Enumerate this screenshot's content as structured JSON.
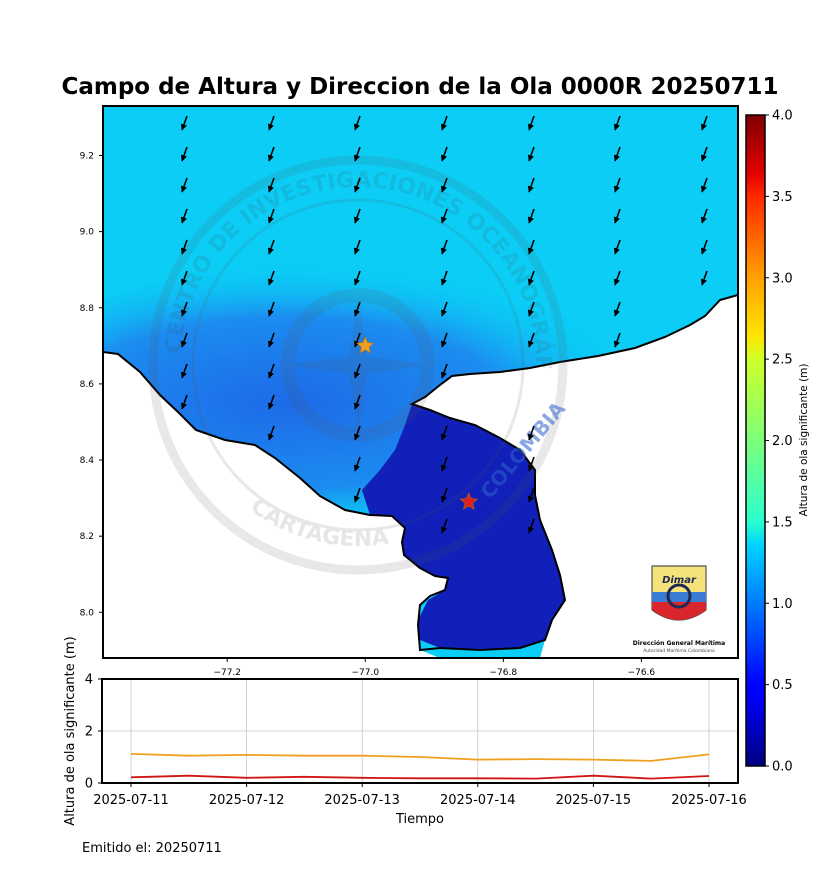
{
  "title": "Campo de Altura y Direccion de la Ola 0000R 20250711",
  "issued": "Emitido el: 20250711",
  "logo": {
    "name": "Dimar",
    "line1": "Dirección General Marítima",
    "line2": "Autoridad Marítima Colombiana"
  },
  "watermark": {
    "text_top": "CENTRO DE INVESTIGACIONES OCEANOGRÁFICAS E HIDROGRÁFICAS",
    "text_bottom": "CARTAGENA",
    "text_country": "COLOMBIA"
  },
  "colors": {
    "sea_open": "#0bcdf6",
    "sea_mid": "#1a78ee",
    "sea_gulf": "#1020b8",
    "land": "#ffffff",
    "series_1": "#f0a020",
    "series_2": "#d01515",
    "star_1": "#f0a020",
    "star_2": "#e02020"
  },
  "chart_data": [
    {
      "type": "heatmap",
      "title": "Campo de Altura y Direccion de la Ola 0000R 20250711",
      "xlim": [
        -77.38,
        -76.46
      ],
      "ylim": [
        7.88,
        9.33
      ],
      "xticks": [
        -77.2,
        -77.0,
        -76.8,
        -76.6
      ],
      "xtick_labels": [
        "−77.2",
        "−77.0",
        "−76.8",
        "−76.6"
      ],
      "yticks": [
        8.0,
        8.2,
        8.4,
        8.6,
        8.8,
        9.0,
        9.2
      ],
      "ytick_labels": [
        "8.0",
        "8.2",
        "8.4",
        "8.6",
        "8.8",
        "9.0",
        "9.2"
      ],
      "wave_direction": "arrows point towards south-southwest",
      "markers": [
        {
          "name": "station-orange",
          "lon": -77.0,
          "lat": 8.7
        },
        {
          "name": "station-red",
          "lon": -76.85,
          "lat": 8.29
        }
      ],
      "colorbar": {
        "label": "Altura de ola significante (m)",
        "range": [
          0.0,
          4.0
        ],
        "ticks": [
          0.0,
          0.5,
          1.0,
          1.5,
          2.0,
          2.5,
          3.0,
          3.5,
          4.0
        ],
        "tick_labels": [
          "0.0",
          "0.5",
          "1.0",
          "1.5",
          "2.0",
          "2.5",
          "3.0",
          "3.5",
          "4.0"
        ],
        "colormap": "jet"
      },
      "field_values": {
        "open_sea": 1.1,
        "nearshore": 0.8,
        "gulf": 0.3
      }
    },
    {
      "type": "line",
      "xlabel": "Tiempo",
      "ylabel": "Altura de ola significante (m)",
      "x": [
        "2025-07-11",
        "2025-07-11 12h",
        "2025-07-12",
        "2025-07-12 12h",
        "2025-07-13",
        "2025-07-13 12h",
        "2025-07-14",
        "2025-07-14 12h",
        "2025-07-15",
        "2025-07-15 12h",
        "2025-07-16"
      ],
      "x_numeric": [
        0,
        0.5,
        1,
        1.5,
        2,
        2.5,
        3,
        3.5,
        4,
        4.5,
        5
      ],
      "xtick_labels": [
        "2025-07-11",
        "2025-07-12",
        "2025-07-13",
        "2025-07-14",
        "2025-07-15",
        "2025-07-16"
      ],
      "ylim": [
        0,
        4
      ],
      "yticks": [
        0,
        2,
        4
      ],
      "ytick_labels": [
        "0",
        "2",
        "4"
      ],
      "grid": true,
      "series": [
        {
          "color": "#f0a020",
          "values": [
            1.12,
            1.05,
            1.08,
            1.05,
            1.05,
            1.0,
            0.9,
            0.92,
            0.9,
            0.85,
            1.1
          ]
        },
        {
          "color": "#d01515",
          "values": [
            0.22,
            0.28,
            0.2,
            0.24,
            0.2,
            0.18,
            0.18,
            0.17,
            0.28,
            0.17,
            0.27
          ]
        }
      ]
    }
  ]
}
